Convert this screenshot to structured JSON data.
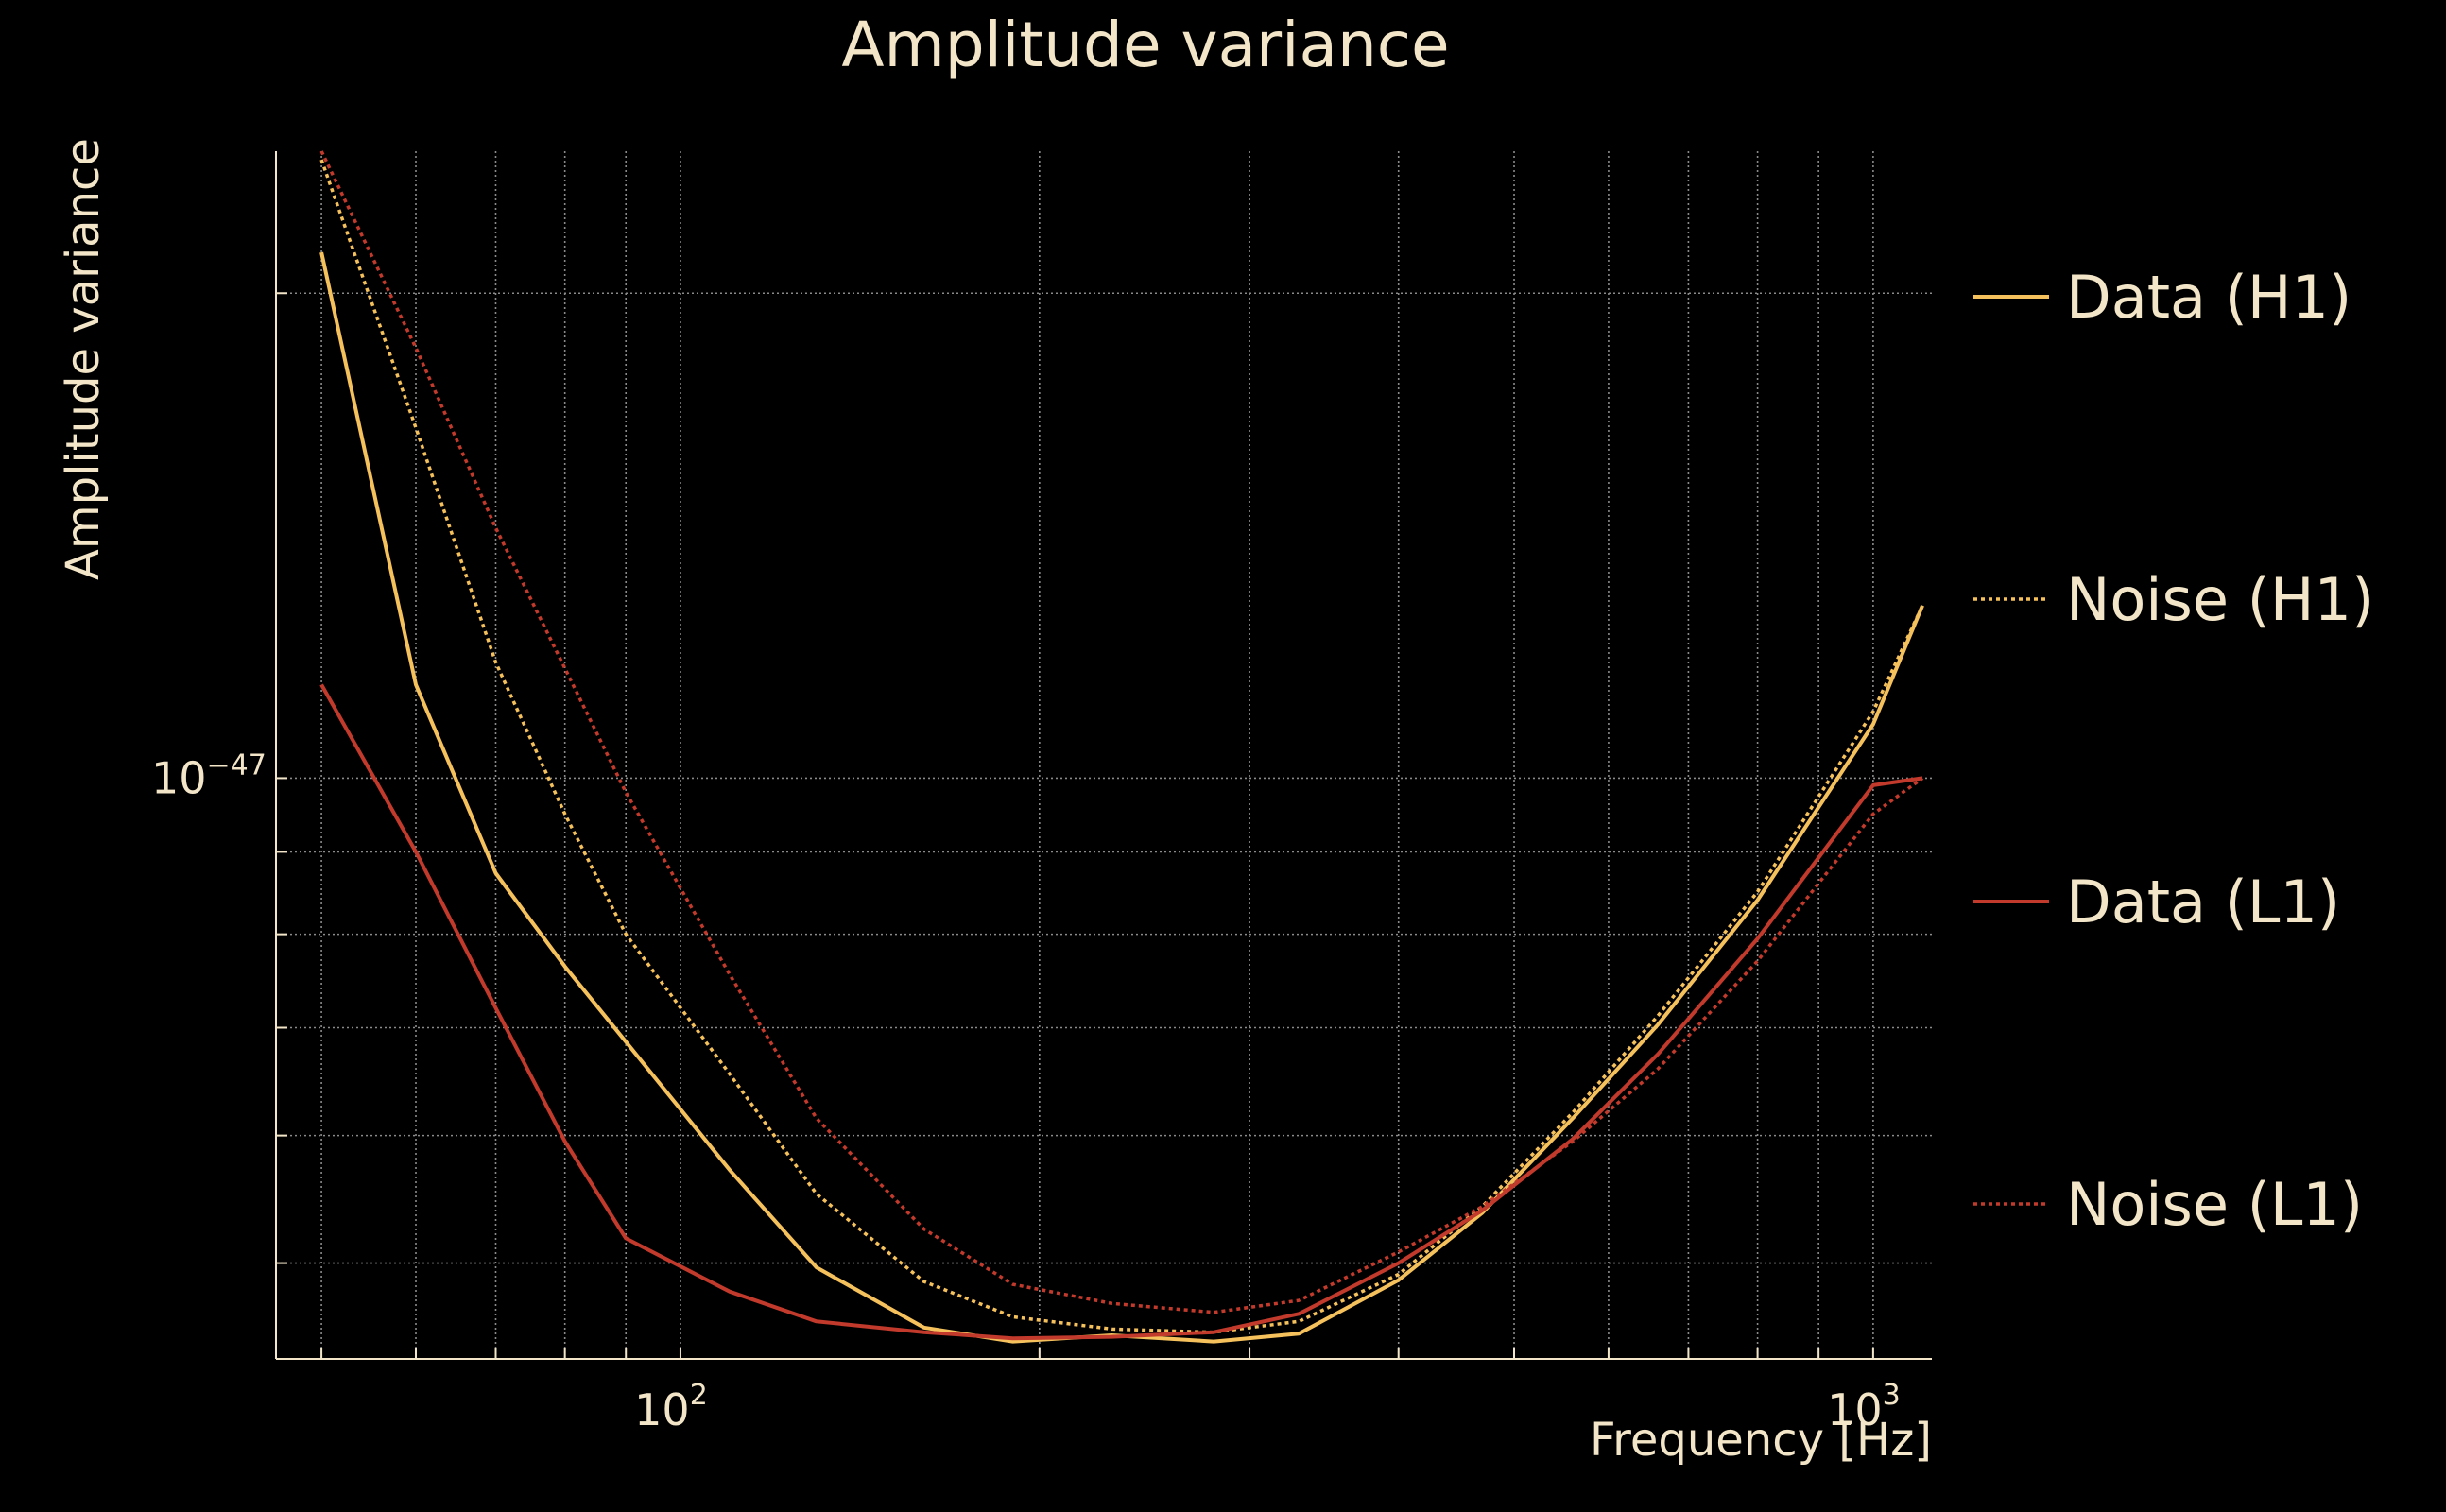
{
  "chart_data": {
    "type": "line",
    "title": "Amplitude variance",
    "xlabel": "Frequency [Hz]",
    "ylabel": "Amplitude variance",
    "x_scale": "log",
    "y_scale": "log",
    "xlim": [
      45.8,
      1120
    ],
    "ylim": [
      4.36e-48,
      2.45e-47
    ],
    "x_ticks": [
      {
        "base": "10",
        "exp": "2",
        "value": 100
      },
      {
        "base": "10",
        "exp": "3",
        "value": 1000
      }
    ],
    "y_ticks": [
      {
        "base": "10",
        "exp": "−47",
        "value": 1e-47
      }
    ],
    "x_minor_ticks": [
      50,
      60,
      70,
      80,
      90,
      200,
      300,
      400,
      500,
      600,
      700,
      800,
      900
    ],
    "y_minor_ticks": [
      5e-48,
      6e-48,
      7e-48,
      8e-48,
      9e-48,
      2e-47
    ],
    "grid": true,
    "legend_position": "right",
    "background_color": "#000000",
    "text_color": "#f3e6c8",
    "grid_color": "#8a8a8a",
    "x": [
      50,
      60,
      70,
      80,
      90,
      110,
      130,
      160,
      190,
      230,
      280,
      330,
      400,
      470,
      560,
      660,
      800,
      1000,
      1100
    ],
    "series": [
      {
        "name": "Data (H1)",
        "color": "#f5c15c",
        "style": "solid",
        "values": [
          2.12e-47,
          1.143e-47,
          8.73e-48,
          7.64e-48,
          6.86e-48,
          5.71e-48,
          4.97e-48,
          4.56e-48,
          4.47e-48,
          4.51e-48,
          4.47e-48,
          4.52e-48,
          4.88e-48,
          5.37e-48,
          6.15e-48,
          7.03e-48,
          8.4e-48,
          1.08e-47,
          1.28e-47
        ]
      },
      {
        "name": "Noise (H1)",
        "color": "#f5c15c",
        "style": "dotted",
        "values": [
          2.42e-47,
          1.65e-47,
          1.18e-47,
          9.5e-48,
          8e-48,
          6.55e-48,
          5.52e-48,
          4.87e-48,
          4.63e-48,
          4.55e-48,
          4.53e-48,
          4.6e-48,
          4.92e-48,
          5.42e-48,
          6.2e-48,
          7.12e-48,
          8.5e-48,
          1.1e-47,
          1.28e-47
        ]
      },
      {
        "name": "Data (L1)",
        "color": "#c13a2c",
        "style": "solid",
        "values": [
          1.143e-47,
          9e-48,
          7.2e-48,
          5.95e-48,
          5.18e-48,
          4.8e-48,
          4.6e-48,
          4.53e-48,
          4.49e-48,
          4.5e-48,
          4.53e-48,
          4.65e-48,
          5e-48,
          5.39e-48,
          5.97e-48,
          6.74e-48,
          7.95e-48,
          9.9e-48,
          1e-47
        ]
      },
      {
        "name": "Noise (L1)",
        "color": "#c13a2c",
        "style": "dotted",
        "values": [
          2.45e-47,
          1.85e-47,
          1.43e-47,
          1.17e-47,
          9.8e-48,
          7.55e-48,
          6.15e-48,
          5.25e-48,
          4.85e-48,
          4.72e-48,
          4.66e-48,
          4.74e-48,
          5.08e-48,
          5.42e-48,
          5.95e-48,
          6.6e-48,
          7.7e-48,
          9.5e-48,
          1e-47
        ]
      }
    ]
  }
}
